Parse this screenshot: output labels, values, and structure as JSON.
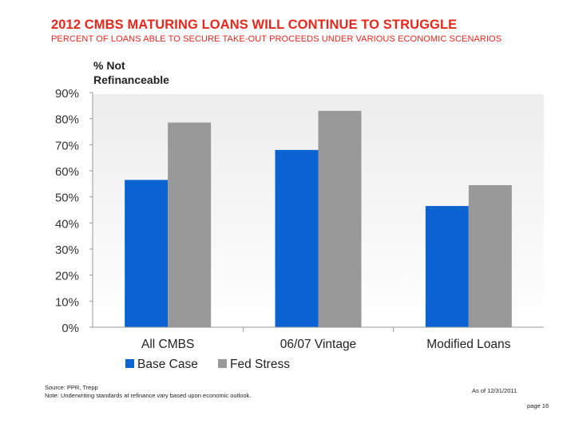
{
  "header": {
    "title": "2012 CMBS MATURING LOANS WILL CONTINUE TO STRUGGLE",
    "subtitle": "PERCENT OF LOANS ABLE TO SECURE TAKE-OUT PROCEEDS UNDER VARIOUS ECONOMIC SCENARIOS"
  },
  "chart_data": {
    "type": "bar",
    "ylabel_line1": "% Not",
    "ylabel_line2": "Refinanceable",
    "categories": [
      "All CMBS",
      "06/07 Vintage",
      "Modified Loans"
    ],
    "series": [
      {
        "name": "Base Case",
        "color": "#0a63d1",
        "values": [
          56.5,
          68,
          46.5
        ]
      },
      {
        "name": "Fed Stress",
        "color": "#999999",
        "values": [
          78.5,
          83,
          54.5
        ]
      }
    ],
    "ylim": [
      0,
      90
    ],
    "ticks": [
      0,
      10,
      20,
      30,
      40,
      50,
      60,
      70,
      80,
      90
    ],
    "tick_suffix": "%",
    "grid": false,
    "legend_position": "bottom"
  },
  "footer": {
    "source": "Source: PPR, Trepp",
    "note": "Note: Underwriting standards at refinance vary based upon economic outlook.",
    "date": "As of 12/31/2011",
    "page": "page 16"
  }
}
